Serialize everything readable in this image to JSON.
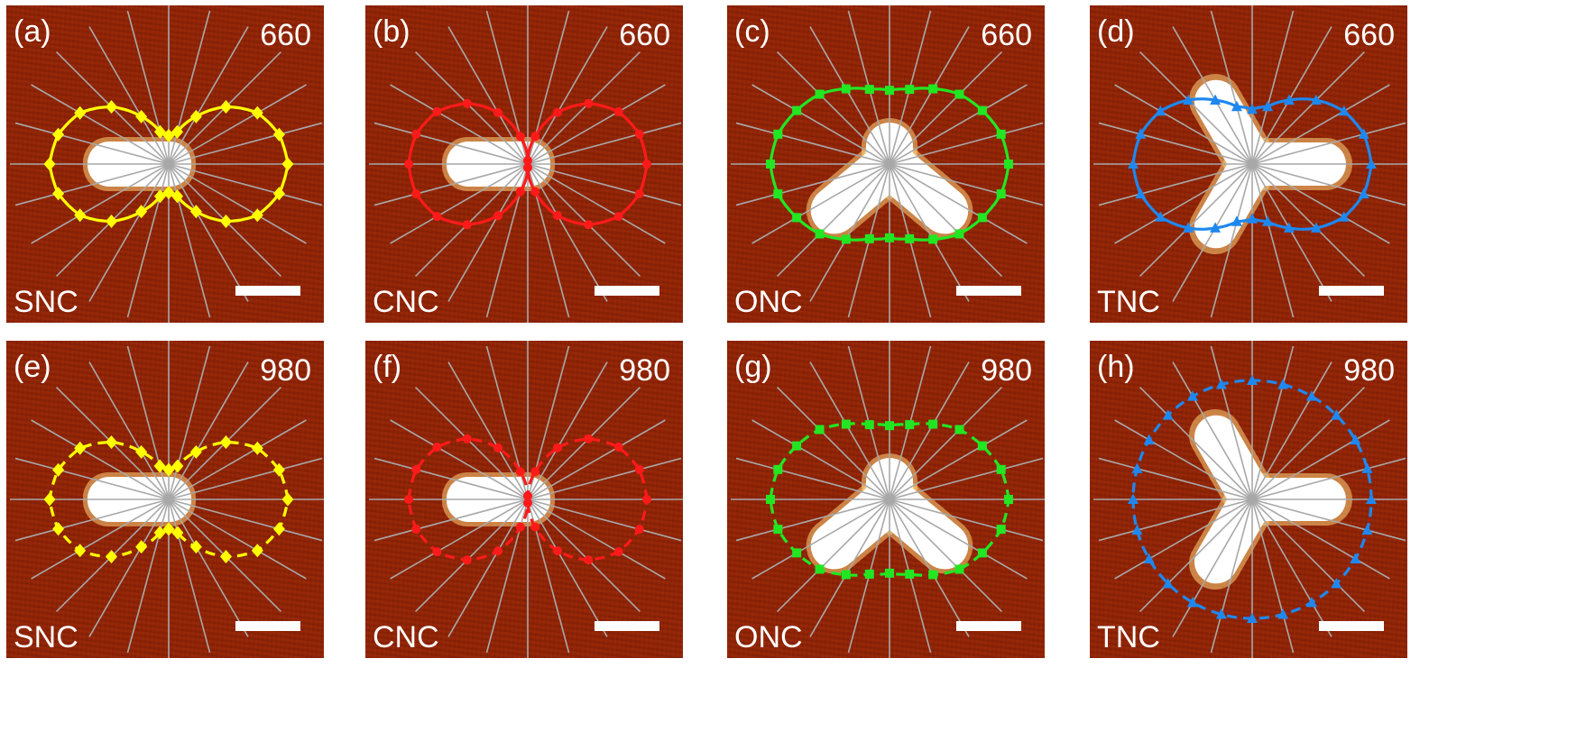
{
  "panels": [
    {
      "label": "(a)",
      "wavelength": "660",
      "name": "SNC",
      "shape": "rod",
      "color": "#ffff00",
      "marker": "diamond",
      "line": "solid"
    },
    {
      "label": "(b)",
      "wavelength": "660",
      "name": "CNC",
      "shape": "rod",
      "color": "#ff1a1a",
      "marker": "circle",
      "line": "solid"
    },
    {
      "label": "(c)",
      "wavelength": "660",
      "name": "ONC",
      "shape": "v",
      "color": "#22e622",
      "marker": "square",
      "line": "solid"
    },
    {
      "label": "(d)",
      "wavelength": "660",
      "name": "TNC",
      "shape": "tripod",
      "color": "#1e88f0",
      "marker": "triangle",
      "line": "solid"
    },
    {
      "label": "(e)",
      "wavelength": "980",
      "name": "SNC",
      "shape": "rod",
      "color": "#ffff00",
      "marker": "diamond",
      "line": "dashed"
    },
    {
      "label": "(f)",
      "wavelength": "980",
      "name": "CNC",
      "shape": "rod",
      "color": "#ff1a1a",
      "marker": "circle",
      "line": "dashed"
    },
    {
      "label": "(g)",
      "wavelength": "980",
      "name": "ONC",
      "shape": "v",
      "color": "#22e622",
      "marker": "square",
      "line": "dashed"
    },
    {
      "label": "(h)",
      "wavelength": "980",
      "name": "TNC",
      "shape": "tripod",
      "color": "#1e88f0",
      "marker": "triangle",
      "line": "dashed"
    }
  ],
  "chart_data": [
    {
      "type": "polar",
      "panel": "(a)",
      "series": [
        {
          "name": "660",
          "values": [
            1.0,
            0.96,
            0.86,
            0.68,
            0.46,
            0.28,
            0.24,
            0.28,
            0.46,
            0.68,
            0.86,
            0.96,
            1.0,
            0.96,
            0.86,
            0.68,
            0.46,
            0.28,
            0.24,
            0.28,
            0.46,
            0.68,
            0.86,
            0.96
          ]
        }
      ]
    },
    {
      "type": "polar",
      "panel": "(b)",
      "series": [
        {
          "name": "660",
          "values": [
            1.0,
            0.97,
            0.88,
            0.72,
            0.5,
            0.24,
            0.03,
            0.24,
            0.5,
            0.72,
            0.88,
            0.97,
            1.0,
            0.97,
            0.88,
            0.72,
            0.5,
            0.24,
            0.03,
            0.24,
            0.5,
            0.72,
            0.88,
            0.97
          ]
        }
      ]
    },
    {
      "type": "polar",
      "panel": "(c)",
      "series": [
        {
          "name": "660",
          "values": [
            1.0,
            0.97,
            0.9,
            0.83,
            0.73,
            0.65,
            0.62,
            0.65,
            0.73,
            0.83,
            0.9,
            0.97,
            1.0,
            0.97,
            0.9,
            0.83,
            0.73,
            0.65,
            0.62,
            0.65,
            0.73,
            0.83,
            0.9,
            0.97
          ]
        }
      ]
    },
    {
      "type": "polar",
      "panel": "(d)",
      "series": [
        {
          "name": "660",
          "values": [
            1.0,
            0.97,
            0.89,
            0.76,
            0.62,
            0.5,
            0.46,
            0.5,
            0.62,
            0.76,
            0.89,
            0.97,
            1.0,
            0.97,
            0.89,
            0.76,
            0.62,
            0.5,
            0.46,
            0.5,
            0.62,
            0.76,
            0.89,
            0.97
          ]
        }
      ]
    },
    {
      "type": "polar",
      "panel": "(e)",
      "series": [
        {
          "name": "980",
          "values": [
            1.0,
            0.96,
            0.86,
            0.68,
            0.46,
            0.29,
            0.25,
            0.29,
            0.46,
            0.68,
            0.86,
            0.96,
            1.0,
            0.96,
            0.86,
            0.68,
            0.46,
            0.29,
            0.25,
            0.29,
            0.46,
            0.68,
            0.86,
            0.96
          ]
        }
      ]
    },
    {
      "type": "polar",
      "panel": "(f)",
      "series": [
        {
          "name": "980",
          "values": [
            1.0,
            0.97,
            0.88,
            0.72,
            0.5,
            0.24,
            0.03,
            0.24,
            0.5,
            0.72,
            0.88,
            0.97,
            1.0,
            0.97,
            0.88,
            0.72,
            0.5,
            0.24,
            0.03,
            0.24,
            0.5,
            0.72,
            0.88,
            0.97
          ]
        }
      ]
    },
    {
      "type": "polar",
      "panel": "(g)",
      "series": [
        {
          "name": "980",
          "values": [
            1.0,
            0.97,
            0.9,
            0.83,
            0.73,
            0.65,
            0.62,
            0.65,
            0.73,
            0.83,
            0.9,
            0.97,
            1.0,
            0.97,
            0.9,
            0.83,
            0.73,
            0.65,
            0.62,
            0.65,
            0.73,
            0.83,
            0.9,
            0.97
          ]
        }
      ]
    },
    {
      "type": "polar",
      "panel": "(h)",
      "series": [
        {
          "name": "980",
          "values": [
            1.0,
            1.0,
            1.0,
            1.0,
            1.0,
            1.0,
            1.0,
            1.0,
            1.0,
            1.0,
            1.0,
            1.0,
            1.0,
            1.0,
            1.0,
            1.0,
            1.0,
            1.0,
            1.0,
            1.0,
            1.0,
            1.0,
            1.0,
            1.0
          ]
        }
      ]
    }
  ]
}
